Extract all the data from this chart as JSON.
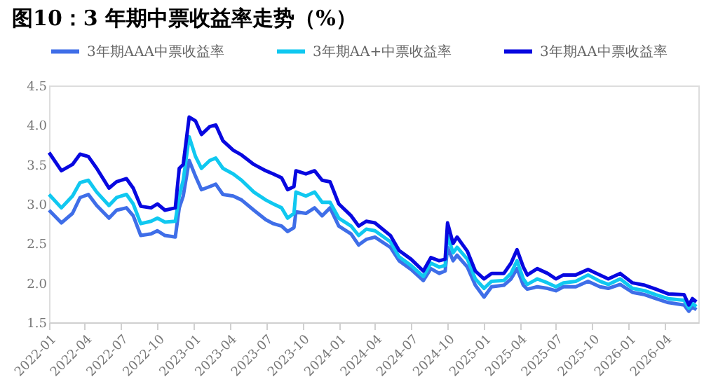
{
  "chart_data": {
    "type": "line",
    "title": "图10：3 年期中票收益率走势（%）",
    "x": [
      "2022-01-01",
      "2022-02-01",
      "2022-03-01",
      "2022-03-20",
      "2022-04-10",
      "2022-05-01",
      "2022-06-01",
      "2022-06-20",
      "2022-07-15",
      "2022-08-01",
      "2022-08-20",
      "2022-09-15",
      "2022-10-01",
      "2022-10-20",
      "2022-11-15",
      "2022-11-25",
      "2022-12-05",
      "2022-12-20",
      "2023-01-05",
      "2023-01-20",
      "2023-02-10",
      "2023-02-25",
      "2023-03-15",
      "2023-04-10",
      "2023-05-01",
      "2023-06-01",
      "2023-07-01",
      "2023-07-20",
      "2023-08-10",
      "2023-08-25",
      "2023-09-10",
      "2023-09-15",
      "2023-10-10",
      "2023-11-01",
      "2023-11-20",
      "2023-12-10",
      "2024-01-01",
      "2024-02-01",
      "2024-02-20",
      "2024-03-10",
      "2024-04-01",
      "2024-05-10",
      "2024-06-01",
      "2024-07-01",
      "2024-08-01",
      "2024-08-20",
      "2024-09-10",
      "2024-09-25",
      "2024-10-01",
      "2024-10-15",
      "2024-10-25",
      "2024-11-20",
      "2024-12-10",
      "2025-01-01",
      "2025-01-20",
      "2025-02-20",
      "2025-03-10",
      "2025-03-25",
      "2025-04-10",
      "2025-04-20",
      "2025-05-15",
      "2025-06-10",
      "2025-07-01",
      "2025-07-20",
      "2025-08-20",
      "2025-09-20",
      "2025-10-20",
      "2025-11-10",
      "2025-12-10",
      "2026-01-10",
      "2026-02-10",
      "2026-03-10",
      "2026-04-10",
      "2026-05-20",
      "2026-06-01",
      "2026-06-10",
      "2026-06-20"
    ],
    "series": [
      {
        "name": "3年期AAA中票收益率",
        "color": "#3f6ee8",
        "values": [
          2.92,
          2.76,
          2.88,
          3.08,
          3.12,
          2.98,
          2.82,
          2.92,
          2.95,
          2.85,
          2.6,
          2.62,
          2.66,
          2.6,
          2.58,
          2.95,
          3.1,
          3.55,
          3.35,
          3.18,
          3.22,
          3.25,
          3.12,
          3.1,
          3.05,
          2.92,
          2.8,
          2.75,
          2.72,
          2.65,
          2.7,
          2.9,
          2.88,
          2.95,
          2.85,
          2.95,
          2.72,
          2.62,
          2.48,
          2.55,
          2.58,
          2.45,
          2.28,
          2.17,
          2.03,
          2.18,
          2.12,
          2.15,
          2.45,
          2.28,
          2.35,
          2.2,
          1.97,
          1.82,
          1.95,
          1.97,
          2.05,
          2.18,
          1.97,
          1.92,
          1.95,
          1.93,
          1.9,
          1.95,
          1.95,
          2.02,
          1.95,
          1.93,
          1.98,
          1.88,
          1.85,
          1.8,
          1.75,
          1.72,
          1.64,
          1.7,
          1.66
        ]
      },
      {
        "name": "3年期AA+中票收益率",
        "color": "#10c8f0",
        "values": [
          3.12,
          2.95,
          3.1,
          3.27,
          3.3,
          3.15,
          2.98,
          3.08,
          3.12,
          3.0,
          2.75,
          2.78,
          2.82,
          2.77,
          2.78,
          3.1,
          3.3,
          3.85,
          3.6,
          3.45,
          3.55,
          3.58,
          3.45,
          3.38,
          3.3,
          3.15,
          3.05,
          3.0,
          2.95,
          2.82,
          2.88,
          3.15,
          3.1,
          3.15,
          3.02,
          3.02,
          2.82,
          2.72,
          2.6,
          2.68,
          2.66,
          2.52,
          2.33,
          2.22,
          2.08,
          2.25,
          2.2,
          2.22,
          2.6,
          2.38,
          2.45,
          2.3,
          2.05,
          1.93,
          2.02,
          2.03,
          2.12,
          2.28,
          2.05,
          1.98,
          2.05,
          2.0,
          1.95,
          2.0,
          2.02,
          2.1,
          2.02,
          1.98,
          2.05,
          1.93,
          1.9,
          1.85,
          1.8,
          1.78,
          1.68,
          1.74,
          1.7
        ]
      },
      {
        "name": "3年期AA中票收益率",
        "color": "#0808e0",
        "values": [
          3.65,
          3.42,
          3.5,
          3.63,
          3.6,
          3.45,
          3.2,
          3.28,
          3.32,
          3.2,
          2.97,
          2.95,
          3.0,
          2.92,
          2.95,
          3.45,
          3.5,
          4.1,
          4.05,
          3.88,
          3.98,
          4.0,
          3.8,
          3.68,
          3.62,
          3.5,
          3.42,
          3.38,
          3.33,
          3.18,
          3.22,
          3.42,
          3.38,
          3.42,
          3.3,
          3.28,
          3.0,
          2.85,
          2.72,
          2.78,
          2.76,
          2.6,
          2.41,
          2.3,
          2.15,
          2.32,
          2.28,
          2.3,
          2.76,
          2.5,
          2.58,
          2.4,
          2.15,
          2.05,
          2.12,
          2.12,
          2.25,
          2.42,
          2.2,
          2.1,
          2.18,
          2.12,
          2.05,
          2.1,
          2.1,
          2.17,
          2.1,
          2.05,
          2.12,
          2.0,
          1.97,
          1.92,
          1.86,
          1.85,
          1.72,
          1.8,
          1.76
        ]
      }
    ],
    "xlim": [
      "2022-01-01",
      "2026-06-25"
    ],
    "xticks": [
      "2022-01",
      "2022-04",
      "2022-07",
      "2022-10",
      "2023-01",
      "2023-04",
      "2023-07",
      "2023-10",
      "2024-01",
      "2024-04",
      "2024-07",
      "2024-10",
      "2025-01",
      "2025-04",
      "2025-07",
      "2025-10",
      "2026-01",
      "2026-04"
    ],
    "ylim": [
      1.5,
      4.5
    ],
    "yticks": [
      1.5,
      {
        "value": 2,
        "label": "2.0"
      },
      2.5,
      {
        "value": 3,
        "label": "3.0"
      },
      3.5,
      {
        "value": 4,
        "label": "4.0"
      },
      4.5
    ],
    "grid": false,
    "legend": "top",
    "marker": "none",
    "line_style": "solid"
  }
}
